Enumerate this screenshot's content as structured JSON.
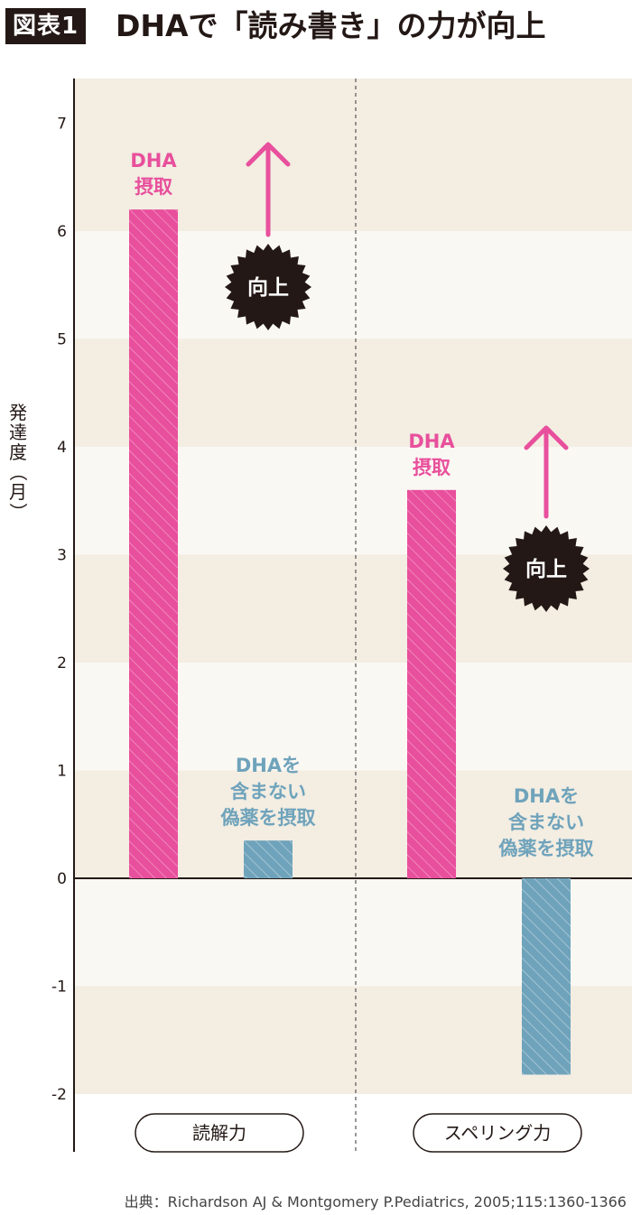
{
  "header": {
    "figure_label": "図表1",
    "title": "DHAで「読み書き」の力が向上"
  },
  "colors": {
    "dha": "#e84f9c",
    "placebo": "#6fa3bb",
    "band_dark": "#f3ede2",
    "band_light": "#faf8f3",
    "badge": "#231815"
  },
  "chart_data": {
    "type": "bar",
    "categories": [
      "読解力",
      "スペリング力"
    ],
    "series": [
      {
        "name": "DHA\n摂取",
        "values": [
          6.2,
          3.6
        ]
      },
      {
        "name": "DHAを\n含まない\n偽薬を摂取",
        "values": [
          0.35,
          -1.82
        ]
      }
    ],
    "ylabel": "発達度（月）",
    "ylim": [
      -2,
      7
    ],
    "yticks": [
      7,
      6,
      5,
      4,
      3,
      2,
      1,
      0,
      -1,
      -2
    ],
    "annotations": [
      "向上",
      "向上"
    ],
    "grid": "alternating horizontal bands"
  },
  "source": "出典：Richardson AJ & Montgomery P.Pediatrics, 2005;115:1360-1366"
}
